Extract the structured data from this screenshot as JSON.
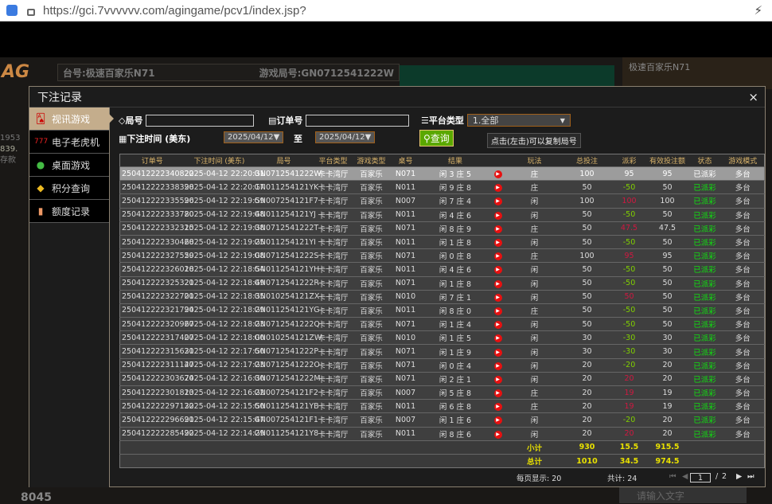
{
  "browser": {
    "url": "https://gci.7vvvvvv.com/agingame/pcv1/index.jsp?"
  },
  "background": {
    "logo": "AG",
    "table_label": "台号:极速百家乐N71",
    "round_label": "游戏局号:GN0712541222W",
    "video_label": "极速百家乐N71",
    "balance1": "1953",
    "balance2": "839.",
    "deposit": "存款",
    "online": "8045",
    "chat_placeholder": "请输入文字"
  },
  "modal": {
    "title": "下注记录",
    "close": "×"
  },
  "sidebar": {
    "items": [
      {
        "label": "视讯游戏",
        "icon": "cards-icon",
        "active": true
      },
      {
        "label": "电子老虎机",
        "icon": "slot-icon"
      },
      {
        "label": "桌面游戏",
        "icon": "chips-icon"
      },
      {
        "label": "积分查询",
        "icon": "diamond-icon"
      },
      {
        "label": "额度记录",
        "icon": "document-icon"
      }
    ]
  },
  "filters": {
    "round_label": "局号",
    "round_value": "",
    "order_label": "订单号",
    "order_value": "",
    "platform_label": "平台类型",
    "platform_value": "1.全部",
    "time_label": "下注时间 (美东)",
    "date_from": "2025/04/12▼",
    "to_label": "至",
    "date_to": "2025/04/12▼",
    "query": "查询"
  },
  "table": {
    "headers": [
      "订单号",
      "下注时间 (美东)",
      "局号",
      "平台类型",
      "游戏类型",
      "桌号",
      "结果",
      "",
      "玩法",
      "总投注",
      "派彩",
      "有效投注额",
      "状态",
      "游戏模式"
    ],
    "tooltip": "点击(左击)可以复制局号",
    "rows": [
      [
        "250412222340822",
        "2025-04-12 22:20:31",
        "GN0712541222W",
        "卡卡湾厅",
        "百家乐",
        "N071",
        "闲 3 庄 5",
        "庄",
        "100",
        "95",
        "95"
      ],
      [
        "250412222338398",
        "2025-04-12 22:20:17",
        "GN011254121YK",
        "卡卡湾厅",
        "百家乐",
        "N011",
        "闲 9 庄 8",
        "庄",
        "50",
        "-50",
        "50"
      ],
      [
        "250412222335596",
        "2025-04-12 22:19:59",
        "GN007254121F7",
        "卡卡湾厅",
        "百家乐",
        "N007",
        "闲 7 庄 4",
        "闲",
        "100",
        "100",
        "100"
      ],
      [
        "250412222333780",
        "2025-04-12 22:19:48",
        "GN011254121YJ",
        "卡卡湾厅",
        "百家乐",
        "N011",
        "闲 4 庄 6",
        "闲",
        "50",
        "-50",
        "50"
      ],
      [
        "250412222332315",
        "2025-04-12 22:19:38",
        "GN0712541222T",
        "卡卡湾厅",
        "百家乐",
        "N071",
        "闲 8 庄 9",
        "庄",
        "50",
        "47.5",
        "47.5"
      ],
      [
        "250412222330468",
        "2025-04-12 22:19:25",
        "GN011254121YI",
        "卡卡湾厅",
        "百家乐",
        "N011",
        "闲 1 庄 8",
        "闲",
        "50",
        "-50",
        "50"
      ],
      [
        "250412222327559",
        "2025-04-12 22:19:08",
        "GN0712541222S",
        "卡卡湾厅",
        "百家乐",
        "N071",
        "闲 0 庄 8",
        "庄",
        "100",
        "95",
        "95"
      ],
      [
        "250412222326018",
        "2025-04-12 22:18:54",
        "GN011254121YH",
        "卡卡湾厅",
        "百家乐",
        "N011",
        "闲 4 庄 6",
        "闲",
        "50",
        "-50",
        "50"
      ],
      [
        "250412222325321",
        "2025-04-12 22:18:49",
        "GN0712541222R",
        "卡卡湾厅",
        "百家乐",
        "N071",
        "闲 1 庄 8",
        "闲",
        "50",
        "-50",
        "50"
      ],
      [
        "250412222322701",
        "2025-04-12 22:18:35",
        "GN010254121ZX",
        "卡卡湾厅",
        "百家乐",
        "N010",
        "闲 7 庄 1",
        "闲",
        "50",
        "50",
        "50"
      ],
      [
        "250412222321794",
        "2025-04-12 22:18:29",
        "GN011254121YG",
        "卡卡湾厅",
        "百家乐",
        "N011",
        "闲 8 庄 0",
        "庄",
        "50",
        "-50",
        "50"
      ],
      [
        "250412222320967",
        "2025-04-12 22:18:23",
        "GN0712541222Q",
        "卡卡湾厅",
        "百家乐",
        "N071",
        "闲 1 庄 4",
        "闲",
        "50",
        "-50",
        "50"
      ],
      [
        "250412222317407",
        "2025-04-12 22:18:00",
        "GN010254121ZW",
        "卡卡湾厅",
        "百家乐",
        "N010",
        "闲 1 庄 5",
        "闲",
        "30",
        "-30",
        "30"
      ],
      [
        "250412222315631",
        "2025-04-12 22:17:50",
        "GN0712541222P",
        "卡卡湾厅",
        "百家乐",
        "N071",
        "闲 1 庄 9",
        "闲",
        "30",
        "-30",
        "30"
      ],
      [
        "250412222311147",
        "2025-04-12 22:17:23",
        "GN0712541222O",
        "卡卡湾厅",
        "百家乐",
        "N071",
        "闲 0 庄 4",
        "闲",
        "20",
        "-20",
        "20"
      ],
      [
        "250412222303674",
        "2025-04-12 22:16:30",
        "GN0712541222M",
        "卡卡湾厅",
        "百家乐",
        "N071",
        "闲 2 庄 1",
        "闲",
        "20",
        "20",
        "20"
      ],
      [
        "250412222301813",
        "2025-04-12 22:16:22",
        "GN007254121F2",
        "卡卡湾厅",
        "百家乐",
        "N007",
        "闲 5 庄 8",
        "庄",
        "20",
        "19",
        "19"
      ],
      [
        "250412222297132",
        "2025-04-12 22:15:50",
        "GN011254121YB",
        "卡卡湾厅",
        "百家乐",
        "N011",
        "闲 6 庄 8",
        "庄",
        "20",
        "19",
        "19"
      ],
      [
        "250412222296691",
        "2025-04-12 22:15:47",
        "GN007254121F1",
        "卡卡湾厅",
        "百家乐",
        "N007",
        "闲 1 庄 6",
        "闲",
        "20",
        "-20",
        "20"
      ],
      [
        "250412222285492",
        "2025-04-12 22:14:29",
        "GN011254121Y8",
        "卡卡湾厅",
        "百家乐",
        "N011",
        "闲 8 庄 6",
        "闲",
        "20",
        "20",
        "20"
      ]
    ],
    "status": "已派彩",
    "mode": "多台",
    "subtotal": {
      "label": "小计",
      "bet": "930",
      "payout": "15.5",
      "valid": "915.5"
    },
    "total": {
      "label": "总计",
      "bet": "1010",
      "payout": "34.5",
      "valid": "974.5"
    }
  },
  "pager": {
    "per_page": "每页显示: 20",
    "total": "共计: 24",
    "current": "1",
    "sep": "/",
    "pages": "2",
    "first": "⏮",
    "prev": "◀",
    "next": "▶",
    "last": "⏭"
  },
  "colors": {
    "positive_payout": "#d01840",
    "negative_payout": "#80d000",
    "status": "#10e010",
    "sum": "#e8e000",
    "header": "#d9b36a",
    "query_button": "#5aa800"
  }
}
